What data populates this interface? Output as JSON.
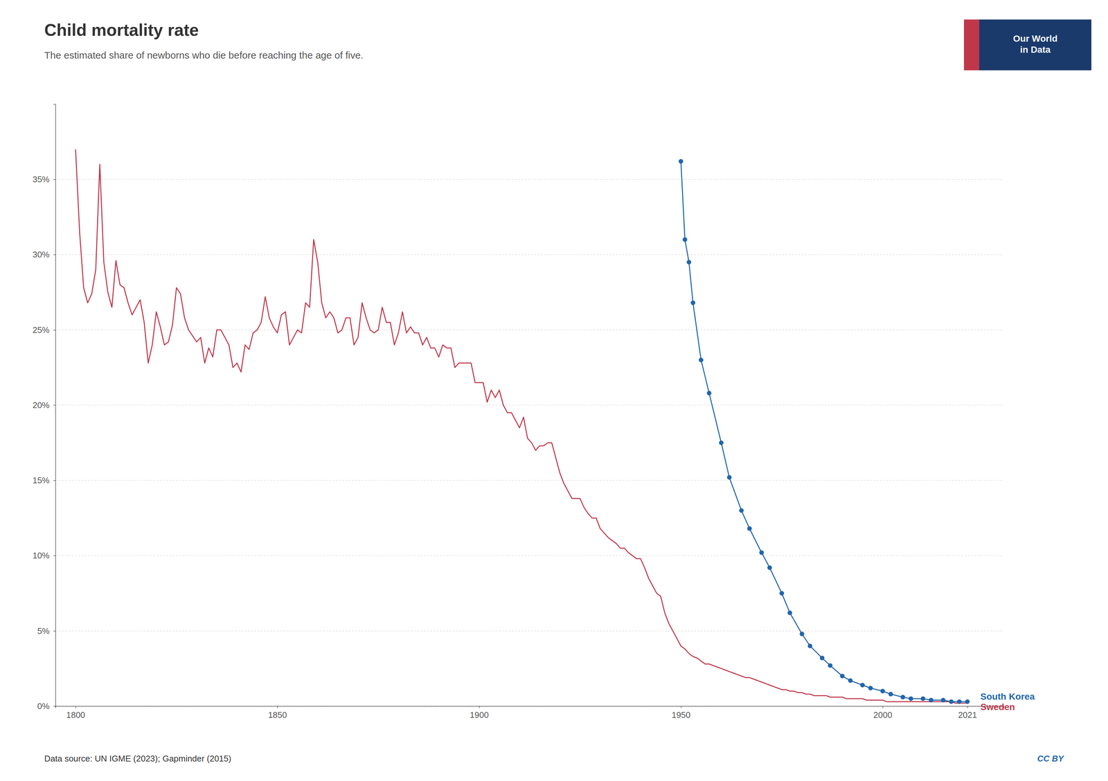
{
  "chart_data": {
    "type": "line",
    "title": "Child mortality rate",
    "subtitle": "The estimated share of newborns who die before reaching the age of five.",
    "annotations": [
      "Data source: UN IGME (2023); Gapminder (2015)",
      "CC BY",
      "Our World\nin Data"
    ],
    "xlim": [
      1795,
      2030
    ],
    "ylim": [
      0,
      0.4
    ],
    "xticks": [
      1800,
      1850,
      1900,
      1950,
      2000,
      2021
    ],
    "yticks": [
      {
        "value": 0.0,
        "label": "0%"
      },
      {
        "value": 0.05,
        "label": "5%"
      },
      {
        "value": 0.1,
        "label": "10%"
      },
      {
        "value": 0.15,
        "label": "15%"
      },
      {
        "value": 0.2,
        "label": "20%"
      },
      {
        "value": 0.25,
        "label": "25%"
      },
      {
        "value": 0.3,
        "label": "30%"
      },
      {
        "value": 0.35,
        "label": "35%"
      }
    ],
    "grid": true,
    "series": [
      {
        "name": "Sweden",
        "color": "#c0374a",
        "x": [
          1800,
          1801,
          1802,
          1803,
          1804,
          1805,
          1806,
          1807,
          1808,
          1809,
          1810,
          1811,
          1812,
          1813,
          1814,
          1815,
          1816,
          1817,
          1818,
          1819,
          1820,
          1821,
          1822,
          1823,
          1824,
          1825,
          1826,
          1827,
          1828,
          1829,
          1830,
          1831,
          1832,
          1833,
          1834,
          1835,
          1836,
          1837,
          1838,
          1839,
          1840,
          1841,
          1842,
          1843,
          1844,
          1845,
          1846,
          1847,
          1848,
          1849,
          1850,
          1851,
          1852,
          1853,
          1854,
          1855,
          1856,
          1857,
          1858,
          1859,
          1860,
          1861,
          1862,
          1863,
          1864,
          1865,
          1866,
          1867,
          1868,
          1869,
          1870,
          1871,
          1872,
          1873,
          1874,
          1875,
          1876,
          1877,
          1878,
          1879,
          1880,
          1881,
          1882,
          1883,
          1884,
          1885,
          1886,
          1887,
          1888,
          1889,
          1890,
          1891,
          1892,
          1893,
          1894,
          1895,
          1896,
          1897,
          1898,
          1899,
          1900,
          1901,
          1902,
          1903,
          1904,
          1905,
          1906,
          1907,
          1908,
          1909,
          1910,
          1911,
          1912,
          1913,
          1914,
          1915,
          1916,
          1917,
          1918,
          1919,
          1920,
          1921,
          1922,
          1923,
          1924,
          1925,
          1926,
          1927,
          1928,
          1929,
          1930,
          1931,
          1932,
          1933,
          1934,
          1935,
          1936,
          1937,
          1938,
          1939,
          1940,
          1941,
          1942,
          1943,
          1944,
          1945,
          1946,
          1947,
          1948,
          1949,
          1950,
          1951,
          1952,
          1953,
          1954,
          1955,
          1956,
          1957,
          1958,
          1959,
          1960,
          1961,
          1962,
          1963,
          1964,
          1965,
          1966,
          1967,
          1968,
          1969,
          1970,
          1971,
          1972,
          1973,
          1974,
          1975,
          1976,
          1977,
          1978,
          1979,
          1980,
          1981,
          1982,
          1983,
          1984,
          1985,
          1986,
          1987,
          1988,
          1989,
          1990,
          1991,
          1992,
          1993,
          1994,
          1995,
          1996,
          1997,
          1998,
          1999,
          2000,
          2001,
          2002,
          2003,
          2004,
          2005,
          2006,
          2007,
          2008,
          2009,
          2010,
          2011,
          2012,
          2013,
          2014,
          2015,
          2016,
          2017,
          2018,
          2019,
          2020,
          2021
        ],
        "values": [
          0.37,
          0.315,
          0.278,
          0.268,
          0.274,
          0.29,
          0.36,
          0.295,
          0.275,
          0.265,
          0.296,
          0.28,
          0.278,
          0.268,
          0.26,
          0.265,
          0.27,
          0.255,
          0.228,
          0.24,
          0.262,
          0.252,
          0.24,
          0.242,
          0.253,
          0.278,
          0.274,
          0.258,
          0.25,
          0.246,
          0.242,
          0.245,
          0.228,
          0.238,
          0.232,
          0.25,
          0.25,
          0.245,
          0.24,
          0.225,
          0.228,
          0.222,
          0.24,
          0.237,
          0.248,
          0.25,
          0.255,
          0.272,
          0.258,
          0.252,
          0.248,
          0.26,
          0.262,
          0.24,
          0.245,
          0.25,
          0.248,
          0.268,
          0.265,
          0.31,
          0.295,
          0.268,
          0.258,
          0.262,
          0.258,
          0.248,
          0.25,
          0.258,
          0.258,
          0.24,
          0.245,
          0.268,
          0.258,
          0.25,
          0.248,
          0.25,
          0.265,
          0.255,
          0.255,
          0.24,
          0.248,
          0.262,
          0.248,
          0.252,
          0.248,
          0.248,
          0.24,
          0.245,
          0.238,
          0.238,
          0.232,
          0.24,
          0.238,
          0.238,
          0.225,
          0.228,
          0.228,
          0.228,
          0.228,
          0.215,
          0.215,
          0.215,
          0.202,
          0.21,
          0.205,
          0.21,
          0.2,
          0.195,
          0.195,
          0.19,
          0.185,
          0.192,
          0.178,
          0.175,
          0.17,
          0.173,
          0.173,
          0.175,
          0.175,
          0.165,
          0.155,
          0.148,
          0.143,
          0.138,
          0.138,
          0.138,
          0.132,
          0.128,
          0.125,
          0.125,
          0.118,
          0.115,
          0.112,
          0.11,
          0.108,
          0.105,
          0.105,
          0.102,
          0.1,
          0.098,
          0.098,
          0.092,
          0.085,
          0.08,
          0.075,
          0.073,
          0.062,
          0.055,
          0.05,
          0.045,
          0.04,
          0.038,
          0.035,
          0.033,
          0.032,
          0.03,
          0.028,
          0.028,
          0.027,
          0.026,
          0.025,
          0.024,
          0.023,
          0.022,
          0.021,
          0.02,
          0.019,
          0.019,
          0.018,
          0.017,
          0.016,
          0.015,
          0.014,
          0.013,
          0.012,
          0.011,
          0.011,
          0.01,
          0.01,
          0.009,
          0.009,
          0.008,
          0.008,
          0.007,
          0.007,
          0.007,
          0.007,
          0.006,
          0.006,
          0.006,
          0.006,
          0.005,
          0.005,
          0.005,
          0.005,
          0.005,
          0.004,
          0.004,
          0.004,
          0.004,
          0.004,
          0.003,
          0.003,
          0.003,
          0.003,
          0.003,
          0.003,
          0.003,
          0.003,
          0.003,
          0.003,
          0.003,
          0.003,
          0.003,
          0.003,
          0.003,
          0.003,
          0.003,
          0.002,
          0.002,
          0.002,
          0.002
        ]
      },
      {
        "name": "South Korea",
        "color": "#2166ac",
        "marker": "circle",
        "x": [
          1950,
          1951,
          1952,
          1953,
          1955,
          1957,
          1960,
          1962,
          1965,
          1967,
          1970,
          1972,
          1975,
          1977,
          1980,
          1982,
          1985,
          1987,
          1990,
          1992,
          1995,
          1997,
          2000,
          2002,
          2005,
          2007,
          2010,
          2012,
          2015,
          2017,
          2019,
          2021
        ],
        "values": [
          0.362,
          0.31,
          0.295,
          0.268,
          0.23,
          0.208,
          0.175,
          0.152,
          0.13,
          0.118,
          0.102,
          0.092,
          0.075,
          0.062,
          0.048,
          0.04,
          0.032,
          0.027,
          0.02,
          0.017,
          0.014,
          0.012,
          0.01,
          0.008,
          0.006,
          0.005,
          0.005,
          0.004,
          0.004,
          0.003,
          0.003,
          0.003
        ]
      }
    ]
  }
}
